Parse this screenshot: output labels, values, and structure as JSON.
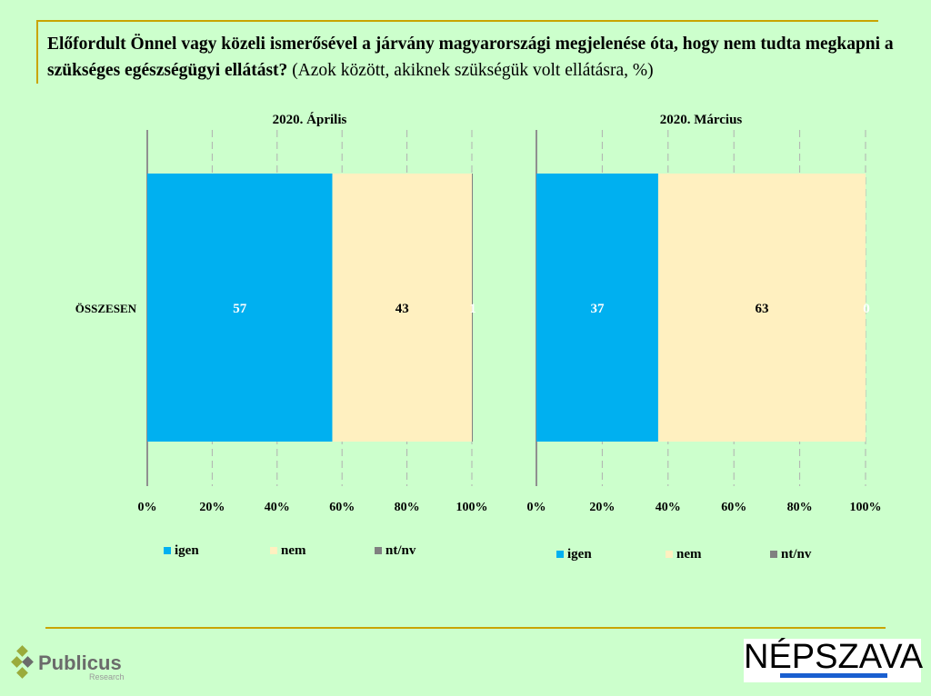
{
  "title": {
    "bold": "Előfordult Önnel vagy közeli ismerősével a járvány magyarországi megjelenése óta, hogy nem tudta megkapni a szükséges egészségügyi ellátást?",
    "note": " (Azok között, akiknek szükségük volt ellátásra, %)"
  },
  "chart_data": [
    {
      "type": "bar",
      "stacked": true,
      "orientation": "horizontal",
      "title": "2020. Április",
      "categories": [
        "ÖSSZESEN"
      ],
      "series": [
        {
          "name": "igen",
          "values": [
            57
          ]
        },
        {
          "name": "nem",
          "values": [
            43
          ]
        },
        {
          "name": "nt/nv",
          "values": [
            1
          ]
        }
      ],
      "xlim": [
        0,
        100
      ],
      "xticks": [
        "0%",
        "20%",
        "40%",
        "60%",
        "80%",
        "100%"
      ],
      "grid": true,
      "legend": "bottom"
    },
    {
      "type": "bar",
      "stacked": true,
      "orientation": "horizontal",
      "title": "2020. Március",
      "categories": [
        ""
      ],
      "series": [
        {
          "name": "igen",
          "values": [
            37
          ]
        },
        {
          "name": "nem",
          "values": [
            63
          ]
        },
        {
          "name": "nt/nv",
          "values": [
            0
          ]
        }
      ],
      "xlim": [
        0,
        100
      ],
      "xticks": [
        "0%",
        "20%",
        "40%",
        "60%",
        "80%",
        "100%"
      ],
      "grid": true,
      "legend": "bottom"
    }
  ],
  "colors": {
    "igen": "#00b0f0",
    "nem": "#fff0c0",
    "nt/nv": "#808080",
    "label_igen": "#ffffff",
    "label_nem": "#000000",
    "label_ntnv": "#ffffff"
  },
  "logos": {
    "left": "Publicus Research",
    "right": "NÉPSZAVA"
  }
}
